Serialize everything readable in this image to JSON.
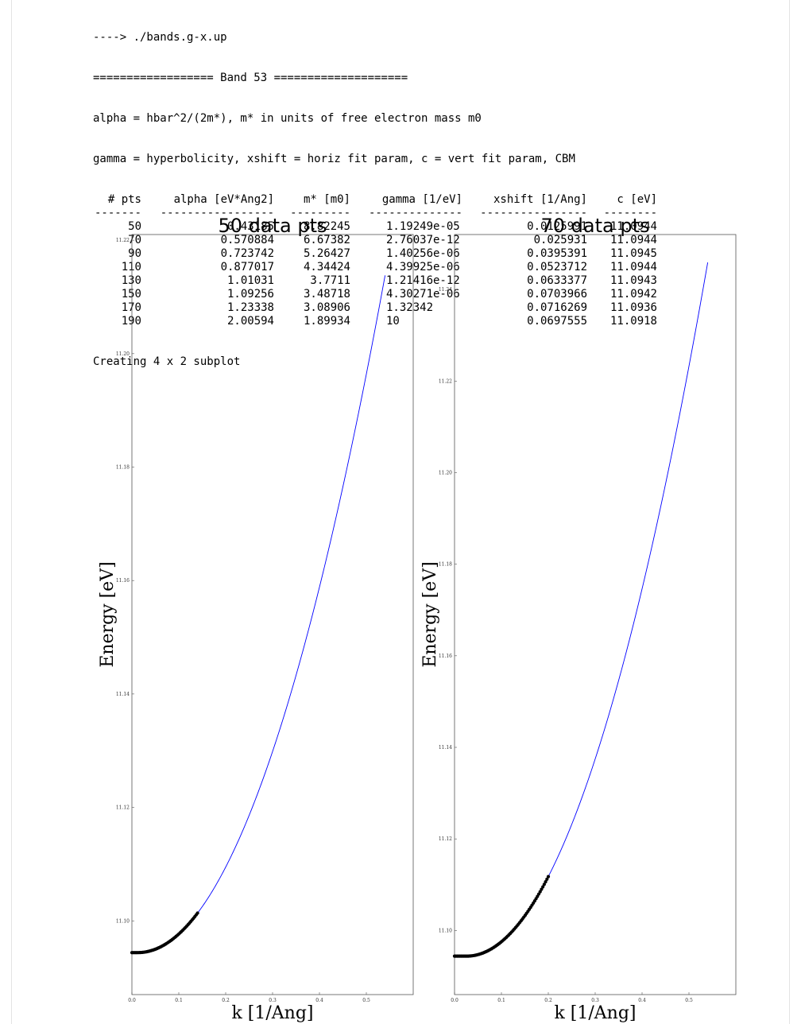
{
  "console": {
    "command": "----> ./bands.g-x.up",
    "band_header": "================== Band 53 ====================",
    "legend_line_1": "alpha = hbar^2/(2m*), m* in units of free electron mass m0",
    "legend_line_2": "gamma = hyperbolicity, xshift = horiz fit param, c = vert fit param, CBM",
    "table": {
      "headers": [
        "# pts",
        "alpha [eV*Ang2]",
        "m* [m0]",
        "gamma [1/eV]",
        "xshift [1/Ang]",
        "c [eV]"
      ],
      "separators": [
        "-------",
        "-----------------",
        "---------",
        "--------------",
        "----------------",
        "--------"
      ],
      "rows": [
        [
          "50",
          "0.43185",
          "8.82245",
          "1.19249e-05",
          "0.0125991",
          "11.0944"
        ],
        [
          "70",
          "0.570884",
          "6.67382",
          "2.76037e-12",
          "0.025931",
          "11.0944"
        ],
        [
          "90",
          "0.723742",
          "5.26427",
          "1.40256e-06",
          "0.0395391",
          "11.0945"
        ],
        [
          "110",
          "0.877017",
          "4.34424",
          "4.39925e-06",
          "0.0523712",
          "11.0944"
        ],
        [
          "130",
          "1.01031",
          "3.7711",
          "1.21416e-12",
          "0.0633377",
          "11.0943"
        ],
        [
          "150",
          "1.09256",
          "3.48718",
          "4.30271e-06",
          "0.0703966",
          "11.0942"
        ],
        [
          "170",
          "1.23338",
          "3.08906",
          "1.32342",
          "0.0716269",
          "11.0936"
        ],
        [
          "190",
          "2.00594",
          "1.89934",
          "10",
          "0.0697555",
          "11.0918"
        ]
      ]
    },
    "footer": "Creating 4 x 2 subplot"
  },
  "chart_data": [
    {
      "type": "scatter",
      "title": "50 data pts",
      "xlabel": "k [1/Ang]",
      "ylabel": "Energy [eV]",
      "xlim": [
        0.0,
        0.6
      ],
      "ylim": [
        11.087,
        11.221
      ],
      "xticks": [
        "0.0",
        "0.1",
        "0.2",
        "0.3",
        "0.4",
        "0.5"
      ],
      "yticks": [
        "11.10",
        "11.12",
        "11.14",
        "11.16",
        "11.18",
        "11.20",
        "11.22"
      ],
      "grid": false,
      "colors": {
        "fit": "#0000ff",
        "data": "#000000"
      },
      "series": [
        {
          "kind": "points",
          "n": 50,
          "x_range": [
            0.0,
            0.14
          ]
        },
        {
          "kind": "fit_curve",
          "x_range": [
            0.0,
            0.54
          ],
          "y_at_x0": 11.0944,
          "y_at_xmax": 11.2138
        }
      ],
      "fit": {
        "alpha": 0.43185,
        "gamma": 1.19249e-05,
        "xshift": 0.0125991,
        "c": 11.0944
      }
    },
    {
      "type": "scatter",
      "title": "70 data pts",
      "xlabel": "k [1/Ang]",
      "ylabel": "Energy [eV]",
      "xlim": [
        0.0,
        0.6
      ],
      "ylim": [
        11.086,
        11.252
      ],
      "xticks": [
        "0.0",
        "0.1",
        "0.2",
        "0.3",
        "0.4",
        "0.5"
      ],
      "yticks": [
        "11.10",
        "11.12",
        "11.14",
        "11.16",
        "11.18",
        "11.20",
        "11.22",
        "11.24"
      ],
      "grid": false,
      "colors": {
        "fit": "#0000ff",
        "data": "#000000"
      },
      "series": [
        {
          "kind": "points",
          "n": 70,
          "x_range": [
            0.0,
            0.2
          ]
        },
        {
          "kind": "fit_curve",
          "x_range": [
            0.0,
            0.54
          ],
          "y_at_x0": 11.0944,
          "y_at_xmax": 11.2459
        }
      ],
      "fit": {
        "alpha": 0.570884,
        "gamma": 2.76037e-12,
        "xshift": 0.025931,
        "c": 11.0944
      }
    }
  ]
}
